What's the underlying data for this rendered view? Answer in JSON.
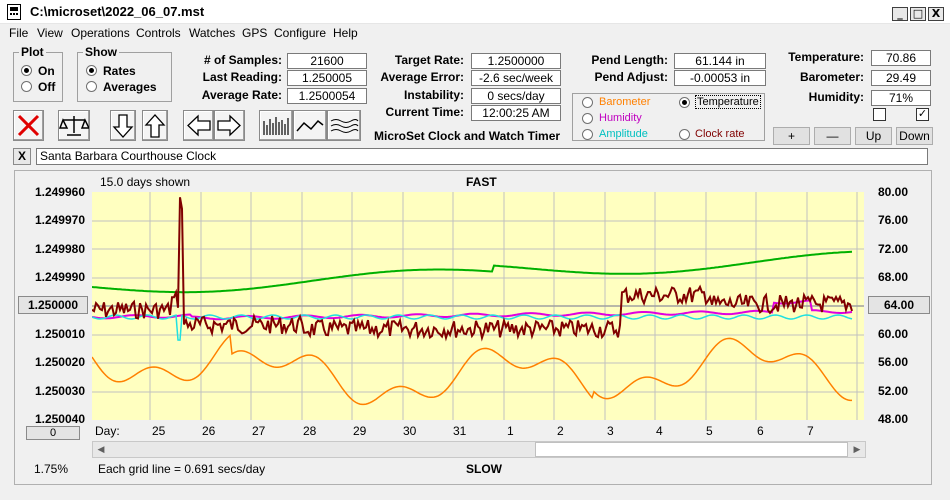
{
  "window": {
    "title": "C:\\microset\\2022_06_07.mst",
    "btn_min": "_",
    "btn_max": "□",
    "btn_close": "X"
  },
  "menu": [
    "File",
    "View",
    "Operations",
    "Controls",
    "Watches",
    "GPS",
    "Configure",
    "Help"
  ],
  "plot": {
    "title": "Plot",
    "on": "On",
    "off": "Off",
    "selected": "On"
  },
  "show": {
    "title": "Show",
    "rates": "Rates",
    "averages": "Averages",
    "selected": "Rates"
  },
  "stats": {
    "samples_label": "# of Samples:",
    "samples": "21600",
    "last_label": "Last Reading:",
    "last": "1.250005",
    "avg_label": "Average Rate:",
    "avg": "1.2500054",
    "target_label": "Target Rate:",
    "target": "1.2500000",
    "avgerr_label": "Average Error:",
    "avgerr": "-2.6 sec/week",
    "instab_label": "Instability:",
    "instab": "0 secs/day",
    "time_label": "Current Time:",
    "time": "12:00:25 AM",
    "pendlen_label": "Pend Length:",
    "pendlen": "61.144 in",
    "pendadj_label": "Pend Adjust:",
    "pendadj": "-0.00053 in",
    "temp_label": "Temperature:",
    "temp": "70.86",
    "baro_label": "Barometer:",
    "baro": "29.49",
    "hum_label": "Humidity:",
    "hum": "71%"
  },
  "app_name": "MicroSet Clock and Watch Timer",
  "channels": {
    "barometer": "Barometer",
    "temperature": "Temperature",
    "humidity": "Humidity",
    "amplitude": "Amplitude",
    "clockrate": "Clock rate",
    "selected": "Temperature",
    "colors": {
      "barometer": "#ff8000",
      "temperature": "#000000",
      "humidity": "#c000c0",
      "amplitude": "#00c0c0",
      "clockrate": "#800000"
    }
  },
  "adj_buttons": {
    "plus": "+",
    "minus": "—",
    "up": "Up",
    "down": "Down"
  },
  "checkboxes": [
    {
      "checked": false,
      "mark": ""
    },
    {
      "checked": true,
      "mark": "✓"
    }
  ],
  "watch": {
    "close": "X",
    "name": "Santa Barbara Courthouse Clock"
  },
  "graph": {
    "days_shown": "15.0 days shown",
    "fast": "FAST",
    "slow": "SLOW",
    "left_ticks": [
      "1.249960",
      "1.249970",
      "1.249980",
      "1.249990",
      "1.250000",
      "1.250010",
      "1.250020",
      "1.250030",
      "1.250040"
    ],
    "center_value": "1.250000",
    "right_ticks": [
      "80.00",
      "76.00",
      "72.00",
      "68.00",
      "64.00",
      "60.00",
      "56.00",
      "52.00",
      "48.00"
    ],
    "right_center": "64.00",
    "day_label": "Day:",
    "days": [
      "25",
      "26",
      "27",
      "28",
      "29",
      "30",
      "31",
      "1",
      "2",
      "3",
      "4",
      "5",
      "6",
      "7"
    ],
    "scroll_btn": "0",
    "percent": "1.75%",
    "grid_note": "Each grid line = 0.691 secs/day",
    "colors": {
      "bg": "#ffffc0",
      "grid": "#c0c0c0",
      "rate": "#800000",
      "temperature": "#00b000",
      "barometer": "#ff8000",
      "humidity": "#e000e0",
      "amplitude": "#20e0e0",
      "center": "#a0a0a0"
    }
  }
}
